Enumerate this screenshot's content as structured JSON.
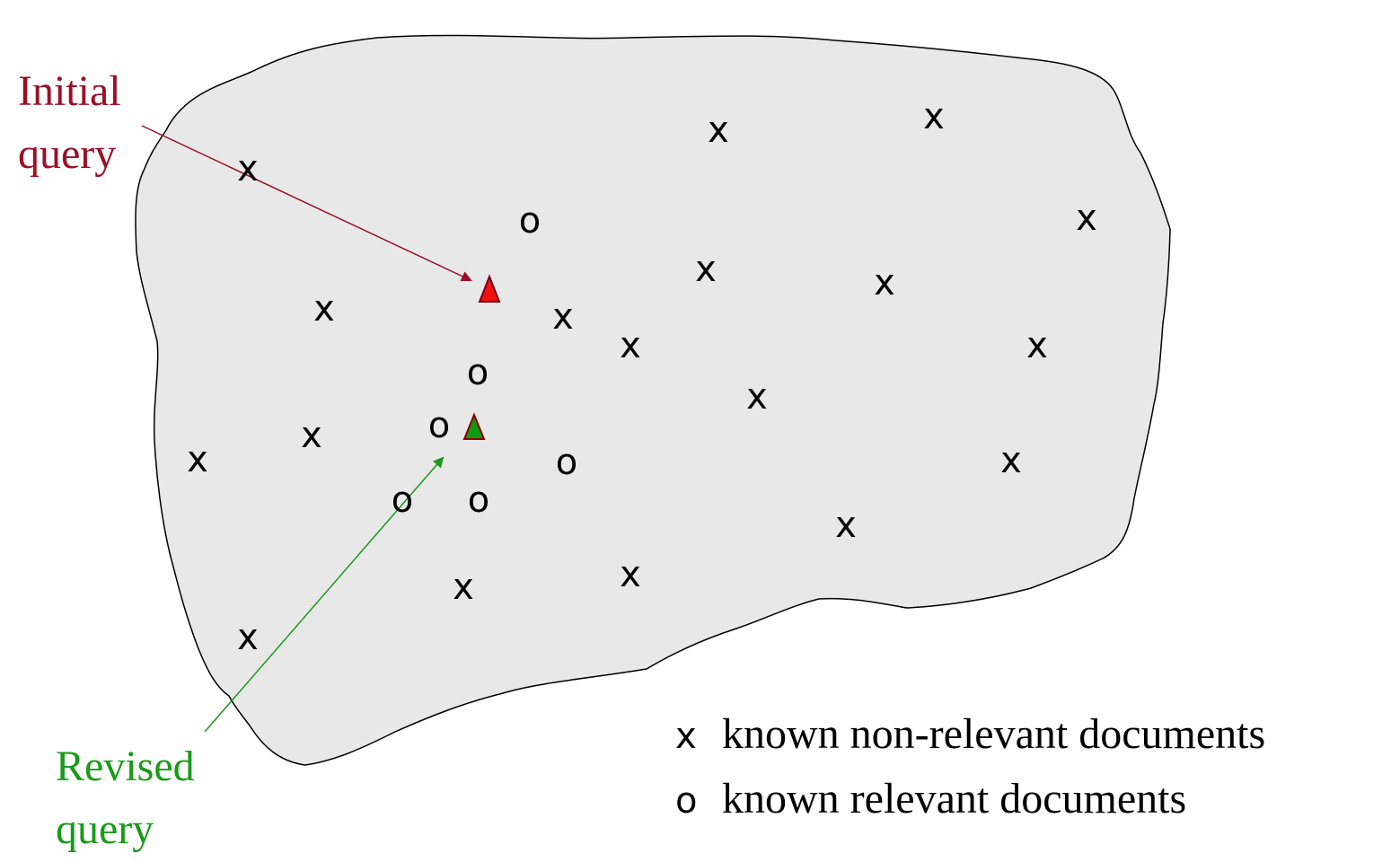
{
  "labels": {
    "initial_query_line1": "Initial",
    "initial_query_line2": "query",
    "revised_query_line1": "Revised",
    "revised_query_line2": "query"
  },
  "legend": {
    "nonrelevant_symbol": "x",
    "nonrelevant_text": "known non-relevant documents",
    "relevant_symbol": "o",
    "relevant_text": "known relevant documents"
  },
  "marks": {
    "nonrelevant": "x",
    "relevant": "o"
  },
  "colors": {
    "initial_query": "#9b1026",
    "revised_query": "#1a9a1a",
    "initial_triangle_fill": "#ee1111",
    "revised_triangle_fill": "#119911",
    "region_fill": "#e8e8e8",
    "region_stroke": "#000000"
  }
}
